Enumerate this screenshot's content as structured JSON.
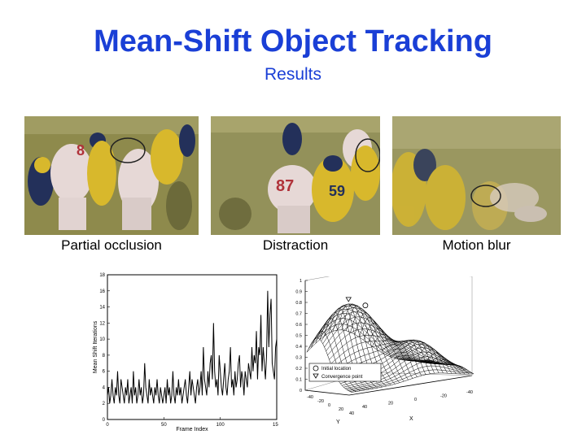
{
  "slide": {
    "title": "Mean-Shift Object Tracking",
    "subtitle": "Results"
  },
  "images": [
    {
      "caption": "Partial occlusion",
      "content": "football-frame-occlusion",
      "jersey_number": "8"
    },
    {
      "caption": "Distraction",
      "content": "football-frame-distraction",
      "jersey_numbers": [
        "87",
        "59"
      ]
    },
    {
      "caption": "Motion blur",
      "content": "football-frame-motion-blur"
    }
  ],
  "colors": {
    "title": "#1a3fd6",
    "field": "#8e8a4c",
    "jersey_yellow": "#d8b82c",
    "jersey_navy": "#23305a",
    "jersey_white": "#e6d8d6",
    "jersey_red": "#b0323a"
  },
  "chart_data": [
    {
      "type": "line",
      "xlabel": "Frame Index",
      "ylabel": "Mean Shift Iterations",
      "xlim": [
        0,
        150
      ],
      "ylim": [
        0,
        18
      ],
      "xticks": [
        "0",
        "50",
        "100",
        "150"
      ],
      "yticks": [
        "0",
        "2",
        "4",
        "6",
        "8",
        "10",
        "12",
        "14",
        "16",
        "18"
      ],
      "series": [
        {
          "values": [
            3,
            4,
            2,
            3,
            5,
            3,
            2,
            4,
            3,
            6,
            3,
            2,
            5,
            4,
            3,
            2,
            4,
            3,
            5,
            2,
            3,
            4,
            2,
            6,
            3,
            4,
            2,
            3,
            5,
            3,
            4,
            2,
            3,
            7,
            4,
            3,
            2,
            5,
            3,
            4,
            3,
            2,
            4,
            3,
            5,
            3,
            2,
            4,
            3,
            2,
            3,
            4,
            2,
            5,
            3,
            4,
            2,
            3,
            6,
            3,
            2,
            4,
            3,
            5,
            3,
            4,
            2,
            3,
            4,
            5,
            3,
            2,
            4,
            6,
            3,
            5,
            4,
            3,
            2,
            4,
            5,
            3,
            4,
            6,
            3,
            9,
            5,
            4,
            3,
            6,
            4,
            7,
            8,
            5,
            12,
            6,
            4,
            5,
            3,
            8,
            6,
            4,
            3,
            5,
            7,
            4,
            3,
            5,
            6,
            9,
            4,
            5,
            3,
            6,
            4,
            5,
            7,
            8,
            4,
            6,
            5,
            3,
            6,
            5,
            4,
            7,
            6,
            5,
            9,
            6,
            8,
            7,
            11,
            5,
            9,
            8,
            13,
            6,
            9,
            7,
            5,
            8,
            16,
            9,
            13,
            15,
            7,
            6,
            5,
            9,
            10
          ]
        }
      ]
    },
    {
      "type": "surface",
      "xlabel": "Y",
      "ylabel": "X",
      "zlim": [
        0,
        1
      ],
      "zticks": [
        "0",
        "0.1",
        "0.2",
        "0.3",
        "0.4",
        "0.5",
        "0.6",
        "0.7",
        "0.8",
        "0.9",
        "1"
      ],
      "yticks": [
        "-40",
        "-20",
        "0",
        "20",
        "40"
      ],
      "xticks": [
        "40",
        "20",
        "0",
        "-20",
        "-40"
      ],
      "legend": {
        "position": "bottom-left",
        "entries": [
          "Initial location",
          "Convergence point"
        ]
      }
    }
  ]
}
